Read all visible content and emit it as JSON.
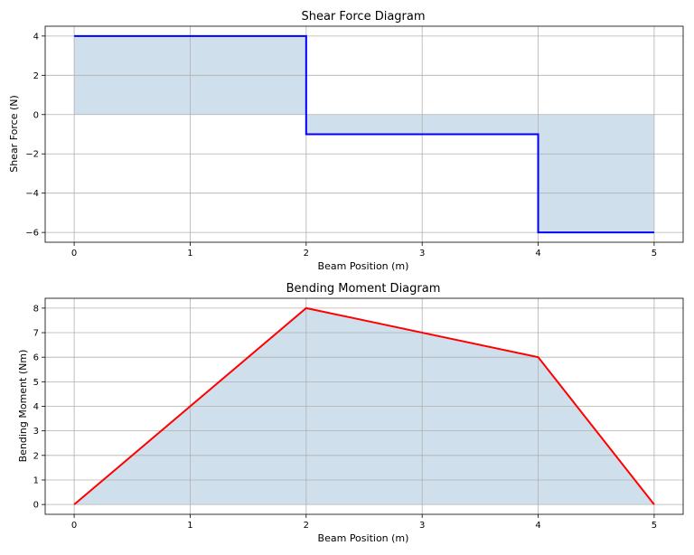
{
  "chart_data": [
    {
      "type": "line",
      "title": "Shear Force Diagram",
      "xlabel": "Beam Position (m)",
      "ylabel": "Shear Force (N)",
      "xlim": [
        -0.25,
        5.25
      ],
      "ylim": [
        -6.5,
        4.5
      ],
      "xticks": [
        0,
        1,
        2,
        3,
        4,
        5
      ],
      "xtick_labels": [
        "0",
        "1",
        "2",
        "3",
        "4",
        "5"
      ],
      "yticks": [
        -6,
        -4,
        -2,
        0,
        2,
        4
      ],
      "ytick_labels": [
        "−6",
        "−4",
        "−2",
        "0",
        "2",
        "4"
      ],
      "grid": true,
      "fill_to_zero": true,
      "line_color": "#0000ff",
      "fill_color": "#cfe0ec",
      "series": [
        {
          "x": [
            0,
            2,
            2,
            4,
            4,
            5
          ],
          "y": [
            4,
            4,
            -1,
            -1,
            -6,
            -6
          ]
        }
      ]
    },
    {
      "type": "line",
      "title": "Bending Moment Diagram",
      "xlabel": "Beam Position (m)",
      "ylabel": "Bending Moment (Nm)",
      "xlim": [
        -0.25,
        5.25
      ],
      "ylim": [
        -0.4,
        8.4
      ],
      "xticks": [
        0,
        1,
        2,
        3,
        4,
        5
      ],
      "xtick_labels": [
        "0",
        "1",
        "2",
        "3",
        "4",
        "5"
      ],
      "yticks": [
        0,
        1,
        2,
        3,
        4,
        5,
        6,
        7,
        8
      ],
      "ytick_labels": [
        "0",
        "1",
        "2",
        "3",
        "4",
        "5",
        "6",
        "7",
        "8"
      ],
      "grid": true,
      "fill_to_zero": true,
      "line_color": "#ff0000",
      "fill_color": "#cfe0ec",
      "series": [
        {
          "x": [
            0,
            2,
            4,
            5
          ],
          "y": [
            0,
            8,
            6,
            0
          ]
        }
      ]
    }
  ]
}
